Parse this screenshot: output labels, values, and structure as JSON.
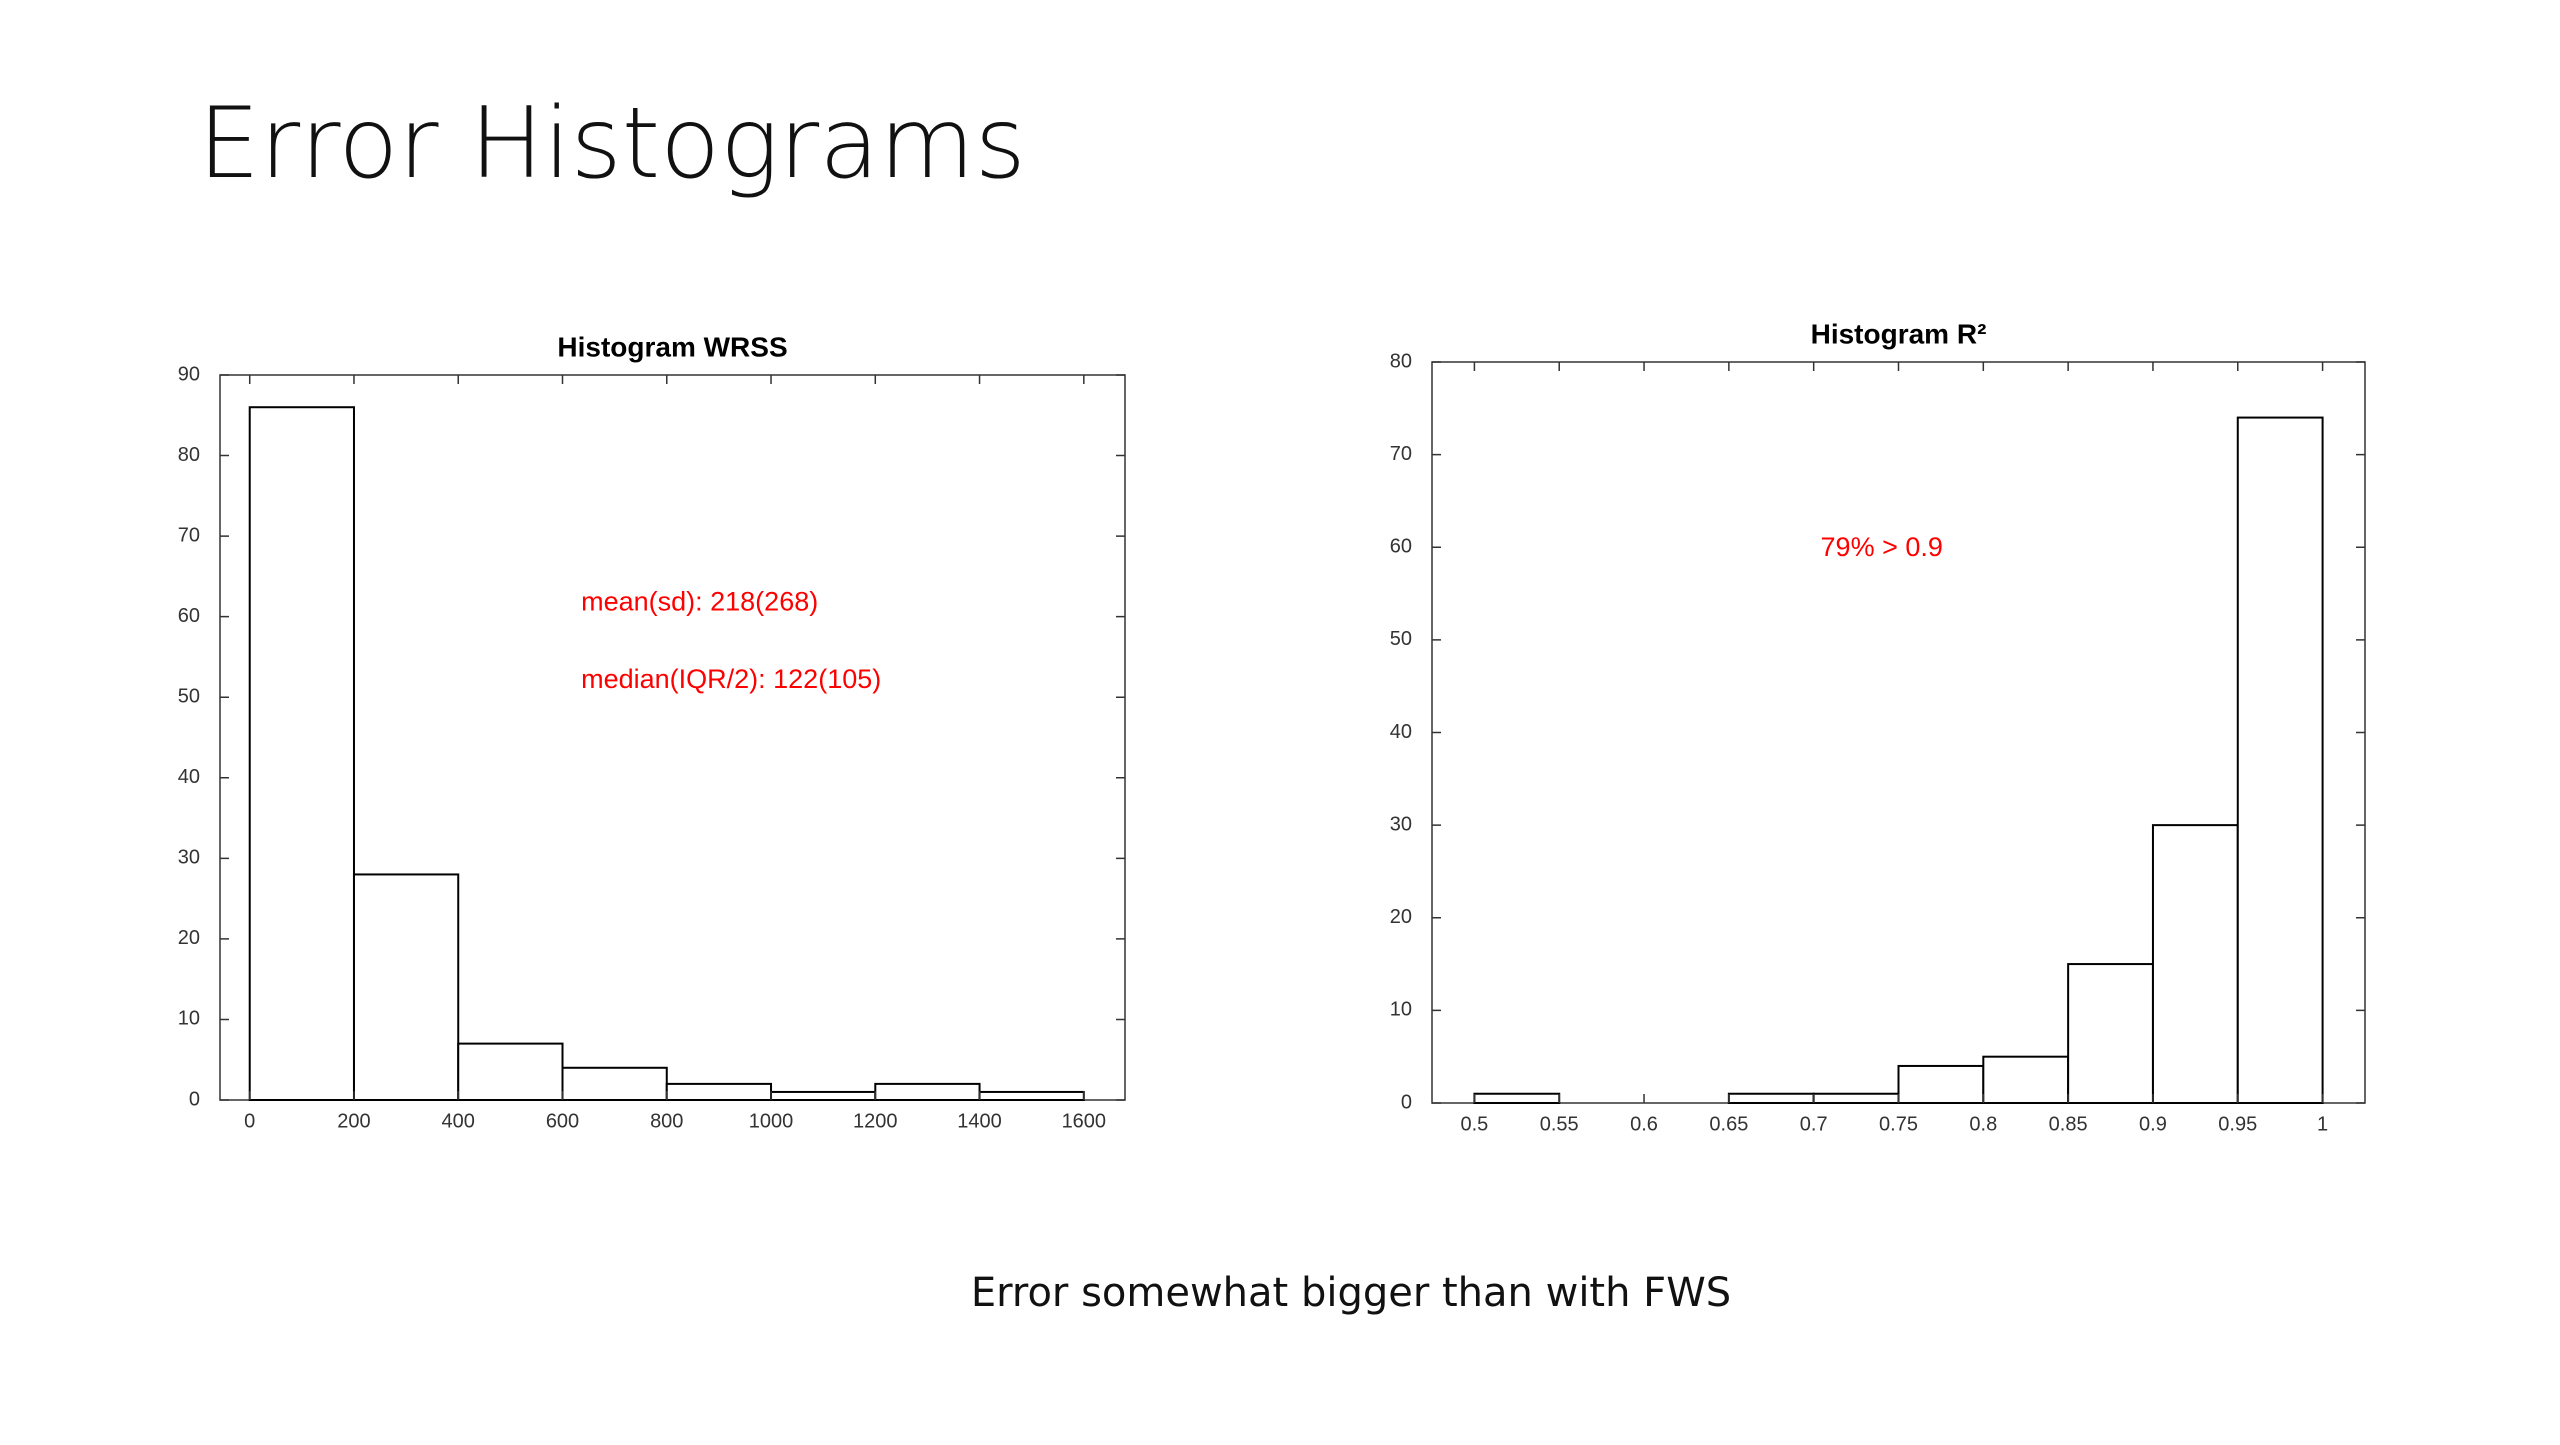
{
  "title": "Error Histograms",
  "caption": "Error somewhat bigger than with FWS",
  "chart_data": [
    {
      "type": "histogram",
      "title": "Histogram WRSS",
      "bins": [
        0,
        200,
        400,
        600,
        800,
        1000,
        1200,
        1400,
        1600
      ],
      "values": [
        86,
        28,
        7,
        4,
        2,
        1,
        2,
        1
      ],
      "xlim": [
        -57,
        1679
      ],
      "xticks": [
        0,
        200,
        400,
        600,
        800,
        1000,
        1200,
        1400,
        1600
      ],
      "ylim": [
        0,
        90
      ],
      "yticks": [
        0,
        10,
        20,
        30,
        40,
        50,
        60,
        70,
        80,
        90
      ],
      "color": "#ffffff",
      "edge_color": "#000000",
      "annotations": [
        "mean(sd): 218(268)",
        "median(IQR/2): 122(105)"
      ],
      "annotation_color": "#ff0000"
    },
    {
      "type": "histogram",
      "title": "Histogram R²",
      "bins": [
        0.5,
        0.55,
        0.6,
        0.65,
        0.7,
        0.75,
        0.8,
        0.85,
        0.9,
        0.95,
        1
      ],
      "values": [
        1,
        0,
        0,
        1,
        1,
        4,
        5,
        15,
        30,
        74
      ],
      "xlim": [
        0.475,
        1.025
      ],
      "xticks": [
        0.5,
        0.55,
        0.6,
        0.65,
        0.7,
        0.75,
        0.8,
        0.85,
        0.9,
        0.95,
        1
      ],
      "ylim": [
        0,
        80
      ],
      "yticks": [
        0,
        10,
        20,
        30,
        40,
        50,
        60,
        70,
        80
      ],
      "color": "#ffffff",
      "edge_color": "#000000",
      "annotations": [
        "79% > 0.9"
      ],
      "annotation_color": "#ff0000"
    }
  ]
}
